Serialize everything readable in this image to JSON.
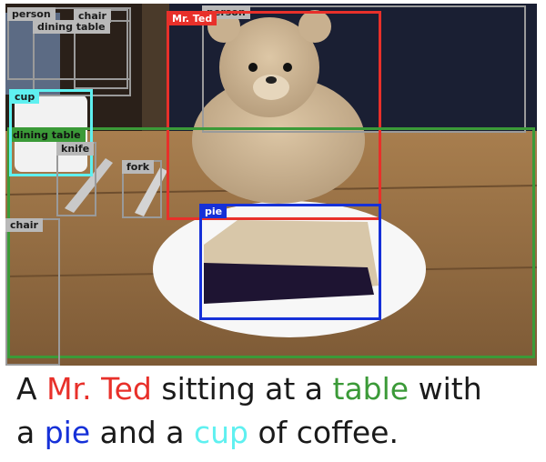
{
  "colors": {
    "mr_ted": "#e8302a",
    "table": "#3b9a38",
    "pie": "#1530d8",
    "cup": "#5ff0f0",
    "other": "#9a9a9a"
  },
  "detections": {
    "person_left": "person",
    "chair_top": "chair",
    "dining_table_small": "dining table",
    "person_right": "person",
    "mr_ted": "Mr. Ted",
    "cup": "cup",
    "dining_table_main": "dining table",
    "knife": "knife",
    "fork": "fork",
    "chair_left": "chair",
    "pie": "pie"
  },
  "caption": {
    "w1": "A",
    "mr_ted": "Mr. Ted",
    "w2": "sitting at a",
    "table": "table",
    "w3": "with",
    "w4": "a",
    "pie": "pie",
    "w5": "and a",
    "cup": "cup",
    "w6": "of coffee."
  }
}
